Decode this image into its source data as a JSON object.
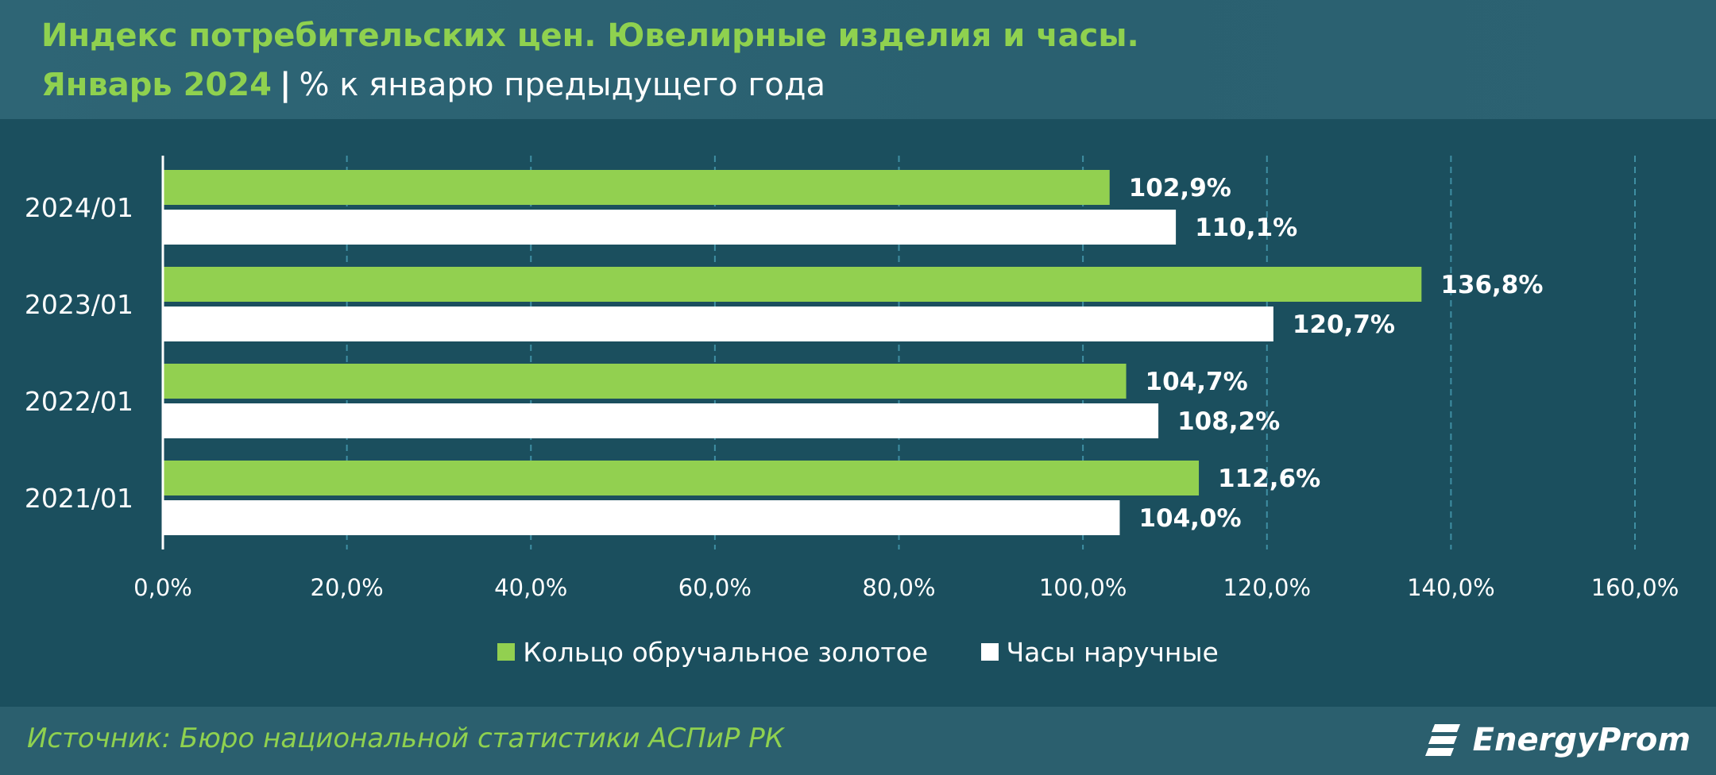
{
  "header": {
    "title_line1": "Индекс потребительских цен. Ювелирные изделия и часы.",
    "title_period": "Январь 2024",
    "title_separator": "|",
    "title_unit": "% к январю предыдущего года"
  },
  "colors": {
    "green": "#92d050",
    "white": "#ffffff",
    "background": "#1b4f5e",
    "header_bg": "#2e6575",
    "accent_text": "#8fd14f"
  },
  "chart_data": {
    "type": "bar",
    "orientation": "horizontal",
    "categories": [
      "2024/01",
      "2023/01",
      "2022/01",
      "2021/01"
    ],
    "series": [
      {
        "name": "Кольцо обручальное золотое",
        "color": "#92d050",
        "values": [
          102.9,
          136.8,
          104.7,
          112.6
        ],
        "labels": [
          "102,9%",
          "136,8%",
          "104,7%",
          "112,6%"
        ]
      },
      {
        "name": "Часы наручные",
        "color": "#ffffff",
        "values": [
          110.1,
          120.7,
          108.2,
          104.0
        ],
        "labels": [
          "110,1%",
          "120,7%",
          "108,2%",
          "104,0%"
        ]
      }
    ],
    "xlim": [
      0,
      160
    ],
    "xticks": [
      0,
      20,
      40,
      60,
      80,
      100,
      120,
      140,
      160
    ],
    "xtick_labels": [
      "0,0%",
      "20,0%",
      "40,0%",
      "60,0%",
      "80,0%",
      "100,0%",
      "120,0%",
      "140,0%",
      "160,0%"
    ],
    "grid": true,
    "grid_style": "dashed vertical",
    "legend_position": "bottom"
  },
  "legend": {
    "items": [
      {
        "label": "Кольцо обручальное золотое",
        "color": "#92d050"
      },
      {
        "label": "Часы наручные",
        "color": "#ffffff"
      }
    ]
  },
  "footer": {
    "source": "Источник: Бюро национальной статистики АСПиР РК",
    "logo_text": "EnergyProm"
  }
}
